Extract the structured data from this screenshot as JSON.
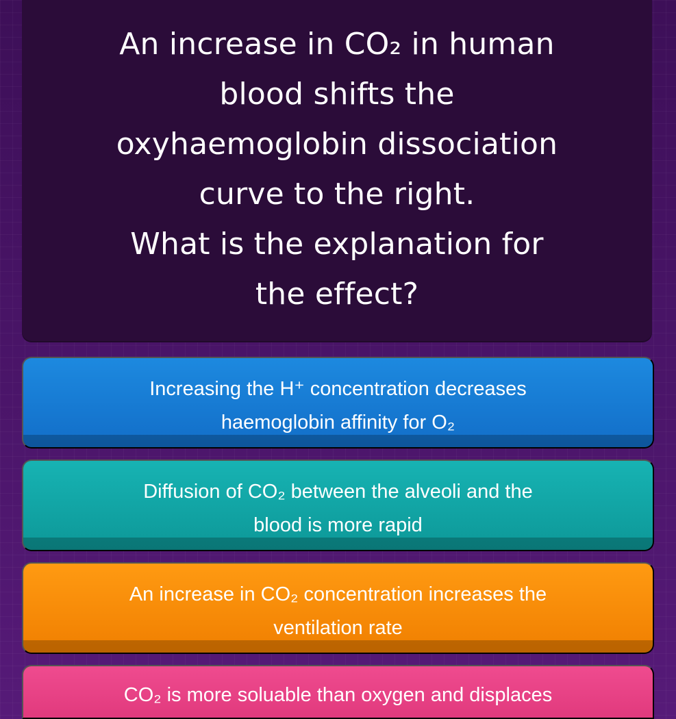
{
  "question": {
    "line_1": "An increase in CO₂ in human",
    "line_2": "blood shifts the",
    "line_3": "oxyhaemoglobin dissociation",
    "line_4": "curve to the right.",
    "line_5": "What is the explanation for",
    "line_6": "the effect?"
  },
  "answers": [
    {
      "line_1": "Increasing the H⁺ concentration decreases",
      "line_2": "haemoglobin affinity for O₂",
      "color": "#1d89df"
    },
    {
      "line_1": "Diffusion of CO₂ between the alveoli and the",
      "line_2": "blood is more rapid",
      "color": "#17b3b3"
    },
    {
      "line_1": "An increase in CO₂ concentration increases the",
      "line_2": "ventilation rate",
      "color": "#ff9a12"
    },
    {
      "line_1": "CO₂ is more soluable than oxygen and displaces",
      "color": "#ef4b8f"
    }
  ]
}
